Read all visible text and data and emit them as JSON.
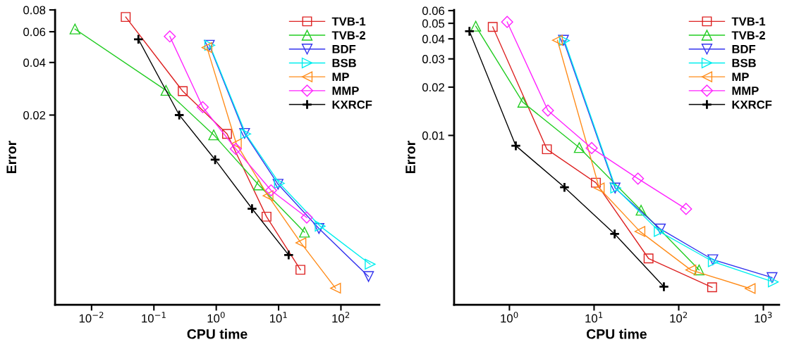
{
  "chart_data": [
    {
      "type": "line",
      "xlabel": "CPU time",
      "ylabel": "Error",
      "log": "xy",
      "legend": "top right",
      "grid": false,
      "xlim": [
        0.0026,
        413
      ],
      "ylim": [
        0.00164,
        0.08
      ],
      "xticks": [
        {
          "value": 0.01,
          "label": "10$^{−2}$"
        },
        {
          "value": 0.1,
          "label": "10$^{−1}$"
        },
        {
          "value": 1,
          "label": "10$^{0}$"
        },
        {
          "value": 10,
          "label": "10$^{1}$"
        },
        {
          "value": 100,
          "label": "10$^{2}$"
        }
      ],
      "yticks": [
        0.02,
        0.04,
        0.06,
        0.08
      ],
      "series": [
        {
          "name": "TVB-1",
          "color": "#dd2222",
          "marker": "square",
          "x": [
            0.0353,
            0.29,
            1.49,
            6.4,
            22.4
          ],
          "values": [
            0.0729,
            0.0274,
            0.0156,
            0.00524,
            0.0026
          ]
        },
        {
          "name": "TVB-2",
          "color": "#22cc22",
          "marker": "triangle",
          "x": [
            0.00542,
            0.156,
            0.91,
            4.79,
            26
          ],
          "values": [
            0.0622,
            0.0277,
            0.0154,
            0.00796,
            0.00427
          ]
        },
        {
          "name": "BDF",
          "color": "#3333ee",
          "marker": "triangle-down",
          "x": [
            0.775,
            2.85,
            9.8,
            44.4,
            277
          ],
          "values": [
            0.0502,
            0.0157,
            0.00803,
            0.00448,
            0.00238
          ]
        },
        {
          "name": "BSB",
          "color": "#00eeee",
          "marker": "triangle-right",
          "x": [
            0.787,
            2.97,
            10.3,
            46.4,
            294
          ],
          "values": [
            0.0502,
            0.0156,
            0.00813,
            0.00462,
            0.0028
          ]
        },
        {
          "name": "MP",
          "color": "#ff8c1a",
          "marker": "triangle-left",
          "x": [
            0.71,
            2.1,
            6.77,
            22.8,
            82
          ],
          "values": [
            0.0487,
            0.0137,
            0.0069,
            0.00371,
            0.00204
          ]
        },
        {
          "name": "MMP",
          "color": "#ff22ff",
          "marker": "diamond",
          "x": [
            0.18,
            0.607,
            2.06,
            7.57,
            28.3
          ],
          "values": [
            0.0564,
            0.0222,
            0.0128,
            0.00741,
            0.00518
          ]
        },
        {
          "name": "KXRCF",
          "color": "#000000",
          "marker": "cross",
          "x": [
            0.0564,
            0.255,
            0.96,
            3.75,
            14.5
          ],
          "values": [
            0.0543,
            0.02,
            0.0111,
            0.00582,
            0.00316
          ]
        }
      ]
    },
    {
      "type": "line",
      "xlabel": "CPU time",
      "ylabel": "Error",
      "log": "xy",
      "legend": "top right",
      "grid": false,
      "xlim": [
        0.222,
        1535
      ],
      "ylim": [
        0.00088,
        0.0606
      ],
      "xticks": [
        {
          "value": 1,
          "label": "10$^{0}$"
        },
        {
          "value": 10,
          "label": "10$^{1}$"
        },
        {
          "value": 100,
          "label": "10$^{2}$"
        },
        {
          "value": 1000,
          "label": "10$^{3}$"
        }
      ],
      "yticks": [
        0.01,
        0.02,
        0.03,
        0.04,
        0.05,
        0.06
      ],
      "series": [
        {
          "name": "TVB-1",
          "color": "#dd2222",
          "marker": "square",
          "x": [
            0.635,
            2.77,
            10.5,
            44,
            248
          ],
          "values": [
            0.0475,
            0.0082,
            0.00507,
            0.00171,
            0.00113
          ]
        },
        {
          "name": "TVB-2",
          "color": "#22cc22",
          "marker": "triangle",
          "x": [
            0.4,
            1.44,
            6.68,
            35.9,
            174
          ],
          "values": [
            0.048,
            0.0161,
            0.0084,
            0.00342,
            0.00145
          ]
        },
        {
          "name": "BDF",
          "color": "#3333ee",
          "marker": "triangle-down",
          "x": [
            4.35,
            17.7,
            60.7,
            253,
            1267
          ],
          "values": [
            0.0392,
            0.0047,
            0.00261,
            0.00168,
            0.0013
          ]
        },
        {
          "name": "BSB",
          "color": "#00eeee",
          "marker": "triangle-right",
          "x": [
            4.47,
            18,
            58.8,
            256,
            1309
          ],
          "values": [
            0.039,
            0.0047,
            0.00252,
            0.00163,
            0.00122
          ]
        },
        {
          "name": "MP",
          "color": "#ff8c1a",
          "marker": "triangle-left",
          "x": [
            3.69,
            11.5,
            34.8,
            139,
            698
          ],
          "values": [
            0.0392,
            0.0047,
            0.00252,
            0.00145,
            0.00111
          ]
        },
        {
          "name": "MMP",
          "color": "#ff22ff",
          "marker": "diamond",
          "x": [
            0.94,
            2.85,
            9.37,
            33,
            122
          ],
          "values": [
            0.051,
            0.0143,
            0.00834,
            0.00538,
            0.00348
          ]
        },
        {
          "name": "KXRCF",
          "color": "#000000",
          "marker": "cross",
          "x": [
            0.337,
            1.19,
            4.47,
            17.5,
            66.8
          ],
          "values": [
            0.0446,
            0.00862,
            0.00475,
            0.00243,
            0.00114
          ]
        }
      ]
    }
  ]
}
